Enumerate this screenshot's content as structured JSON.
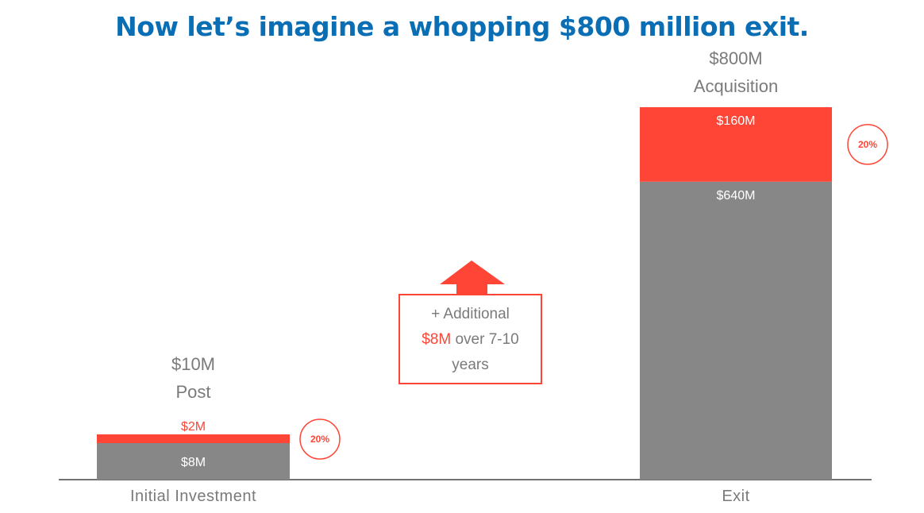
{
  "title": "Now let’s imagine a whopping $800 million exit.",
  "colors": {
    "title": "#0a6eb4",
    "investor_share": "#ff4536",
    "remainder": "#878787",
    "label_gray": "#7a7a7a",
    "axis": "#444444"
  },
  "chart_data": {
    "type": "bar",
    "stacked": true,
    "categories": [
      "Initial Investment",
      "Exit"
    ],
    "series": [
      {
        "name": "",
        "values": [
          8,
          640
        ],
        "labels": [
          "$8M",
          "$640M"
        ]
      },
      {
        "name": "",
        "values": [
          2,
          160
        ],
        "labels": [
          "$2M",
          "$160M"
        ]
      }
    ],
    "totals": [
      {
        "line1": "$10M",
        "line2": "Post"
      },
      {
        "line1": "$800M",
        "line2": "Acquisition"
      }
    ],
    "percent_badges": [
      "20%",
      "20%"
    ],
    "ylim": [
      0,
      800
    ],
    "grid": false,
    "xlabel": "",
    "ylabel": ""
  },
  "annotation": {
    "icon": "up-arrow-icon",
    "line1": "+ Additional",
    "line2_highlight": "$8M",
    "line2_rest": " over 7-10",
    "line3": "years"
  }
}
